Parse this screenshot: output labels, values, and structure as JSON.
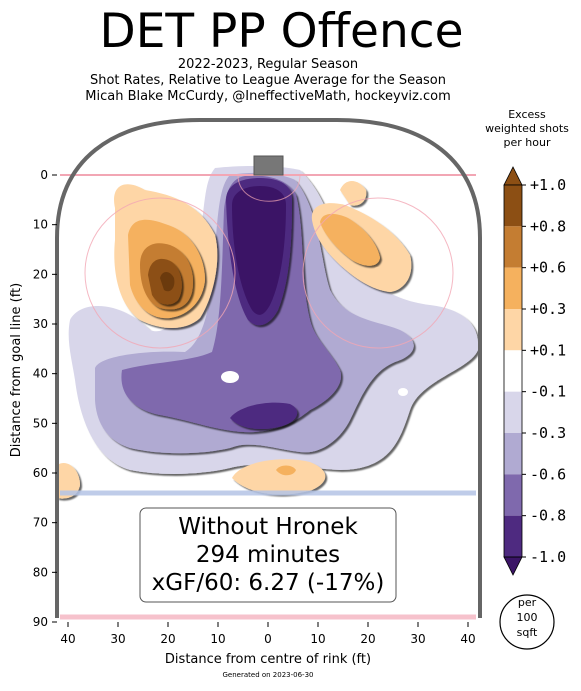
{
  "title": "DET PP Offence",
  "subtitle_lines": [
    "2022-2023, Regular Season",
    "Shot Rates, Relative to League Average for the Season",
    "Micah Blake McCurdy, @IneffectiveMath, hockeyviz.com"
  ],
  "footer": "Generated on 2023-06-30",
  "chart_data": {
    "type": "heatmap",
    "xlabel": "Distance from centre of rink (ft)",
    "ylabel": "Distance from goal line (ft)",
    "x_ticks": [
      "40",
      "30",
      "20",
      "10",
      "0",
      "10",
      "20",
      "30",
      "40"
    ],
    "y_ticks": [
      "0",
      "10",
      "20",
      "30",
      "40",
      "50",
      "60",
      "70",
      "80",
      "90"
    ],
    "xlim": [
      -42.5,
      42.5
    ],
    "ylim": [
      90,
      -11
    ],
    "colorbar": {
      "title": [
        "Excess",
        "weighted shots",
        "per hour"
      ],
      "tick_labels": [
        "+1.0",
        "+0.8",
        "+0.6",
        "+0.3",
        "+0.1",
        "-0.1",
        "-0.3",
        "-0.6",
        "-0.8",
        "-1.0"
      ],
      "colors": [
        "#8c4f14",
        "#c47d32",
        "#f5b15e",
        "#fed6a6",
        "#ffffff",
        "#d8d6ea",
        "#b0aad2",
        "#7f69ad",
        "#4e2a80"
      ],
      "unit_note": [
        "per",
        "100",
        "sqft"
      ]
    },
    "annotation": {
      "lines": [
        "Without Hronek",
        "294 minutes",
        "xGF/60: 6.27 (-17%)"
      ],
      "minutes": 294,
      "xgf_per_60": 6.27,
      "relative_pct": -17
    }
  }
}
